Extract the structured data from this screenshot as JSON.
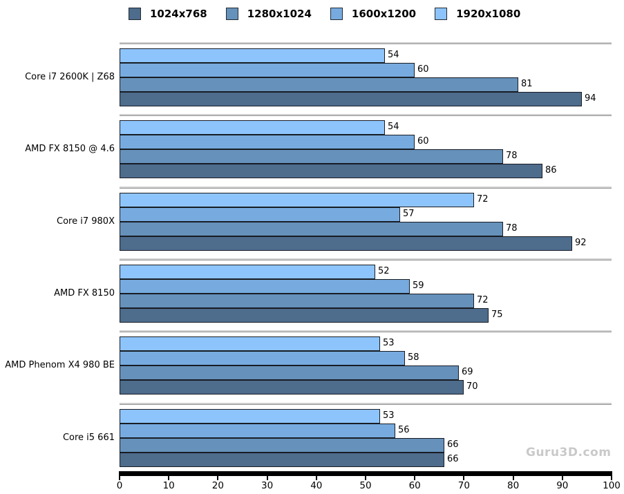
{
  "chart_data": {
    "type": "bar",
    "orientation": "horizontal",
    "title": "",
    "categories": [
      "Core i7 2600K | Z68",
      "AMD FX 8150 @ 4.6",
      "Core i7 980X",
      "AMD FX 8150",
      "AMD Phenom X4 980 BE",
      "Core i5 661"
    ],
    "series": [
      {
        "name": "1024x768",
        "color": "#4e6c8c",
        "values": [
          94,
          86,
          92,
          75,
          70,
          66
        ]
      },
      {
        "name": "1280x1024",
        "color": "#6691ba",
        "values": [
          81,
          78,
          78,
          72,
          69,
          66
        ]
      },
      {
        "name": "1600x1200",
        "color": "#77abdf",
        "values": [
          60,
          60,
          57,
          59,
          58,
          56
        ]
      },
      {
        "name": "1920x1080",
        "color": "#8ec4fc",
        "values": [
          54,
          54,
          72,
          52,
          53,
          53
        ]
      }
    ],
    "bar_order_top_to_bottom": [
      "1920x1080",
      "1600x1200",
      "1280x1024",
      "1024x768"
    ],
    "xlim": [
      0,
      100
    ],
    "x_ticks": [
      0,
      10,
      20,
      30,
      40,
      50,
      60,
      70,
      80,
      90,
      100
    ],
    "legend_position": "top",
    "grid": false,
    "data_labels": true
  },
  "watermark": "Guru3D.com",
  "colors": {
    "background": "#ffffff",
    "bar_border": "#171c23",
    "separator_light": "#cfcfcf",
    "separator_dark": "#969696",
    "axis": "#000000",
    "tick": "#000000",
    "watermark": "#c9c9c9",
    "legend_text": "#000000"
  }
}
